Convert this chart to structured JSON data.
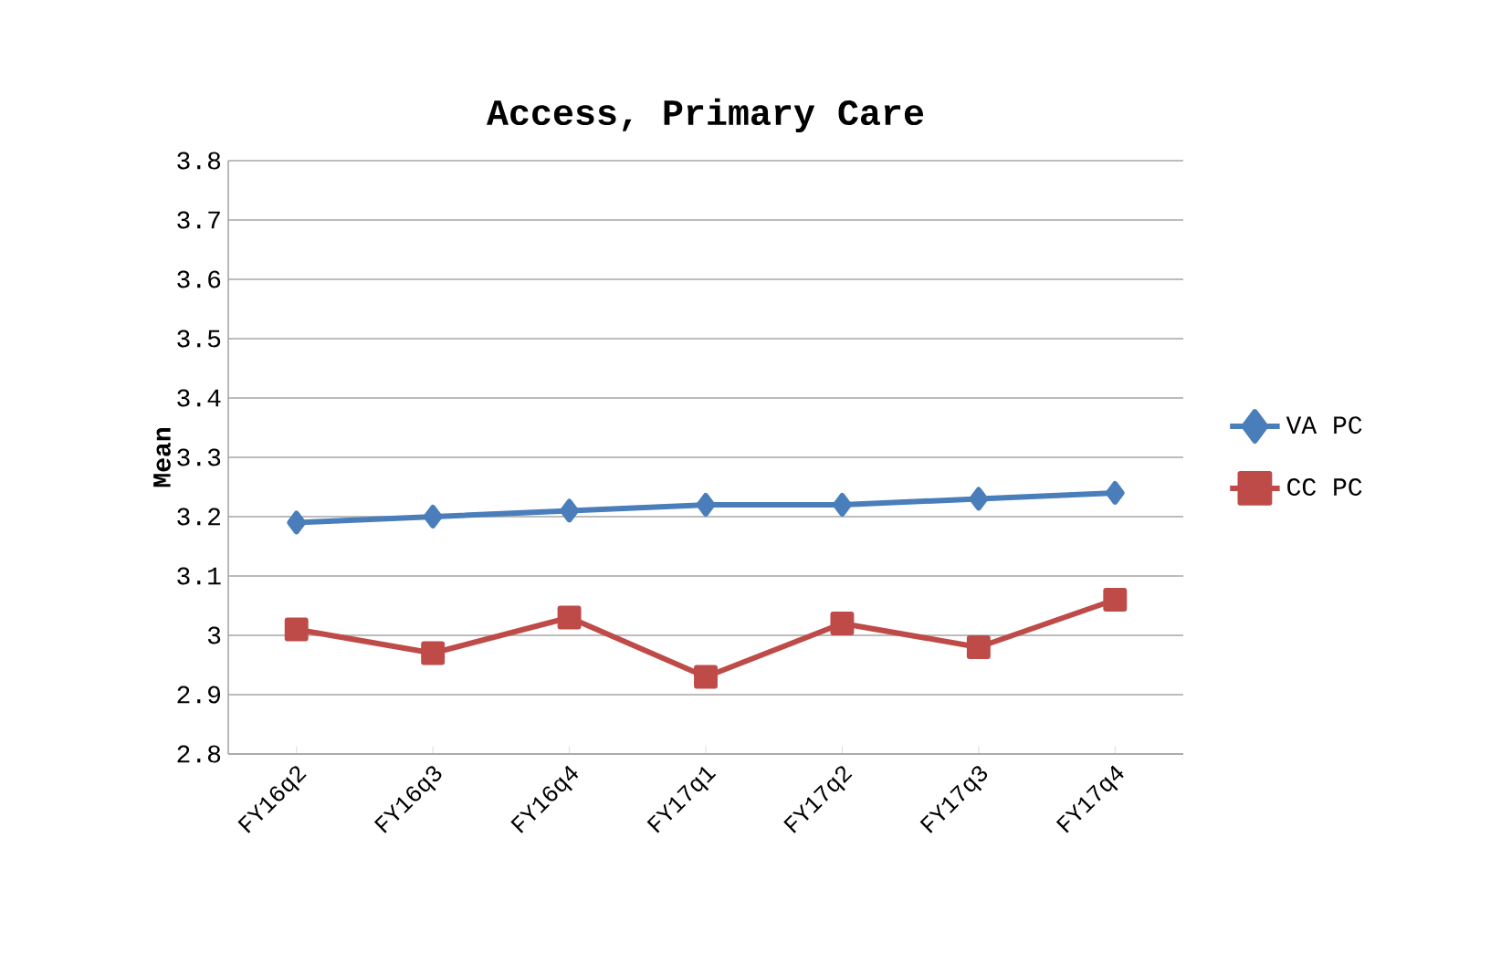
{
  "chart_data": {
    "type": "line",
    "title": "Access, Primary Care",
    "ylabel": "Mean",
    "categories": [
      "FY16q2",
      "FY16q3",
      "FY16q4",
      "FY17q1",
      "FY17q2",
      "FY17q3",
      "FY17q4"
    ],
    "series": [
      {
        "name": "VA PC",
        "color": "#4a7ebb",
        "marker": "diamond",
        "values": [
          3.19,
          3.2,
          3.21,
          3.22,
          3.22,
          3.23,
          3.24
        ]
      },
      {
        "name": "CC PC",
        "color": "#be4b48",
        "marker": "square",
        "values": [
          3.01,
          2.97,
          3.03,
          2.93,
          3.02,
          2.98,
          3.06
        ]
      }
    ],
    "ylim": [
      2.8,
      3.8
    ],
    "yticks": [
      2.8,
      2.9,
      3,
      3.1,
      3.2,
      3.3,
      3.4,
      3.5,
      3.6,
      3.7,
      3.8
    ],
    "grid": "y",
    "legend": "right",
    "line_style": "solid"
  }
}
